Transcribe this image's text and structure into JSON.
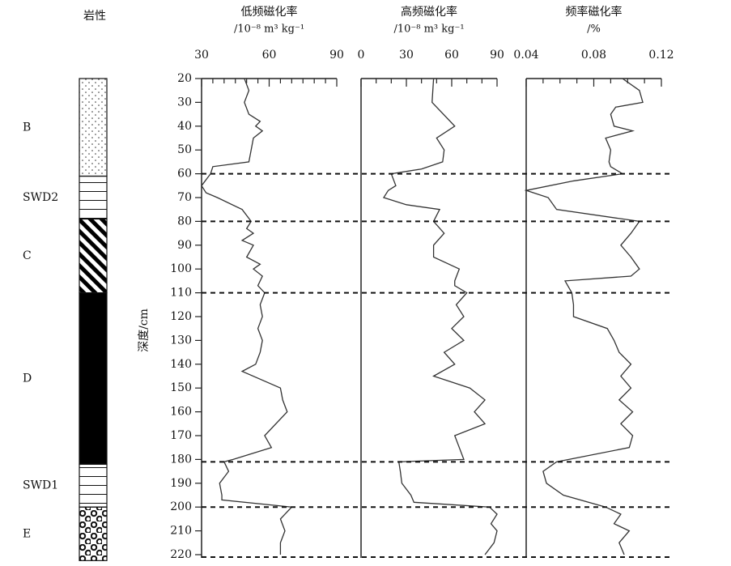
{
  "lithology": {
    "title": "岩性",
    "units": [
      {
        "label": "B",
        "top": 20,
        "bottom": 61,
        "pattern": "dots"
      },
      {
        "label": "SWD2",
        "top": 61,
        "bottom": 79,
        "pattern": "lines"
      },
      {
        "label": "C",
        "top": 79,
        "bottom": 110,
        "pattern": "hatch"
      },
      {
        "label": "D",
        "top": 110,
        "bottom": 182,
        "pattern": "solid"
      },
      {
        "label": "SWD1",
        "top": 182,
        "bottom": 200,
        "pattern": "lines"
      },
      {
        "label": "E",
        "top": 200,
        "bottom": 222.5,
        "pattern": "circles"
      }
    ]
  },
  "boundaries": [
    60,
    80,
    110,
    181,
    200,
    221
  ],
  "chart_data": [
    {
      "type": "line",
      "title": "低频磁化率",
      "subtitle": "/10⁻⁸ m³ kg⁻¹",
      "ylabel": "深度/cm",
      "ylim": [
        20,
        220
      ],
      "yticks": [
        20,
        30,
        40,
        50,
        60,
        70,
        80,
        90,
        100,
        110,
        120,
        130,
        140,
        150,
        160,
        170,
        180,
        190,
        200,
        210,
        220
      ],
      "yinverted": true,
      "xlim": [
        30,
        90
      ],
      "xticks": [
        30,
        60,
        90
      ],
      "xminorticks": [
        35,
        40,
        45,
        50,
        55,
        65,
        70,
        75,
        80,
        85
      ],
      "depth": [
        20,
        25,
        30,
        35,
        38,
        40,
        42,
        45,
        50,
        55,
        57,
        60,
        65,
        68,
        70,
        75,
        80,
        83,
        85,
        88,
        90,
        95,
        98,
        100,
        103,
        107,
        110,
        115,
        120,
        125,
        130,
        135,
        140,
        143,
        150,
        155,
        160,
        170,
        175,
        180,
        181,
        185,
        190,
        195,
        197,
        200,
        205,
        210,
        215,
        220
      ],
      "values": [
        49,
        51,
        49,
        51,
        56,
        54,
        57,
        53,
        52,
        51,
        35,
        34,
        30,
        32,
        37,
        48,
        52,
        50,
        53,
        48,
        53,
        50,
        56,
        53,
        57,
        55,
        58,
        56,
        57,
        55,
        57,
        56,
        54,
        48,
        65,
        66,
        68,
        58,
        61,
        44,
        40,
        42,
        38,
        39,
        39,
        70,
        65,
        67,
        65,
        65
      ]
    },
    {
      "type": "line",
      "title": "高频磁化率",
      "subtitle": "/10⁻⁸ m³ kg⁻¹",
      "ylim": [
        20,
        220
      ],
      "yinverted": true,
      "xlim": [
        0,
        90
      ],
      "xticks": [
        0,
        30,
        60,
        90
      ],
      "xminorticks": [
        10,
        20,
        40,
        50,
        70,
        80
      ],
      "depth": [
        20,
        30,
        40,
        45,
        50,
        55,
        58,
        60,
        65,
        67,
        70,
        73,
        75,
        80,
        85,
        90,
        95,
        100,
        105,
        107,
        110,
        115,
        120,
        125,
        130,
        135,
        140,
        145,
        150,
        155,
        160,
        165,
        170,
        175,
        180,
        181,
        185,
        190,
        195,
        198,
        200,
        203,
        207,
        210,
        215,
        220
      ],
      "values": [
        48,
        47,
        62,
        50,
        55,
        54,
        40,
        20,
        23,
        18,
        15,
        30,
        52,
        48,
        55,
        48,
        48,
        65,
        62,
        62,
        70,
        63,
        68,
        60,
        68,
        55,
        62,
        48,
        72,
        82,
        75,
        82,
        62,
        65,
        68,
        25,
        26,
        27,
        33,
        35,
        85,
        90,
        86,
        90,
        88,
        82
      ]
    },
    {
      "type": "line",
      "title": "频率磁化率",
      "subtitle": "/%",
      "ylim": [
        20,
        220
      ],
      "yinverted": true,
      "xlim": [
        0.04,
        0.12
      ],
      "xticks": [
        {
          "value": 0.04,
          "label": "0.04"
        },
        {
          "value": 0.08,
          "label": "0.08"
        },
        {
          "value": 0.12,
          "label": "0.12"
        }
      ],
      "xminorticks": [
        0.05,
        0.06,
        0.07,
        0.09,
        0.1,
        0.11
      ],
      "depth": [
        20,
        25,
        30,
        32,
        35,
        40,
        42,
        45,
        50,
        55,
        57,
        60,
        63,
        67,
        70,
        75,
        80,
        85,
        90,
        95,
        100,
        103,
        105,
        110,
        115,
        120,
        125,
        130,
        135,
        140,
        145,
        150,
        155,
        160,
        165,
        170,
        175,
        181,
        185,
        190,
        195,
        200,
        203,
        207,
        210,
        215,
        220
      ],
      "values": [
        0.097,
        0.107,
        0.109,
        0.093,
        0.09,
        0.092,
        0.103,
        0.087,
        0.09,
        0.089,
        0.09,
        0.097,
        0.068,
        0.04,
        0.053,
        0.058,
        0.107,
        0.102,
        0.096,
        0.102,
        0.107,
        0.102,
        0.063,
        0.067,
        0.068,
        0.068,
        0.088,
        0.092,
        0.095,
        0.102,
        0.096,
        0.102,
        0.095,
        0.103,
        0.096,
        0.103,
        0.101,
        0.058,
        0.05,
        0.052,
        0.062,
        0.087,
        0.096,
        0.092,
        0.101,
        0.095,
        0.098
      ]
    }
  ]
}
